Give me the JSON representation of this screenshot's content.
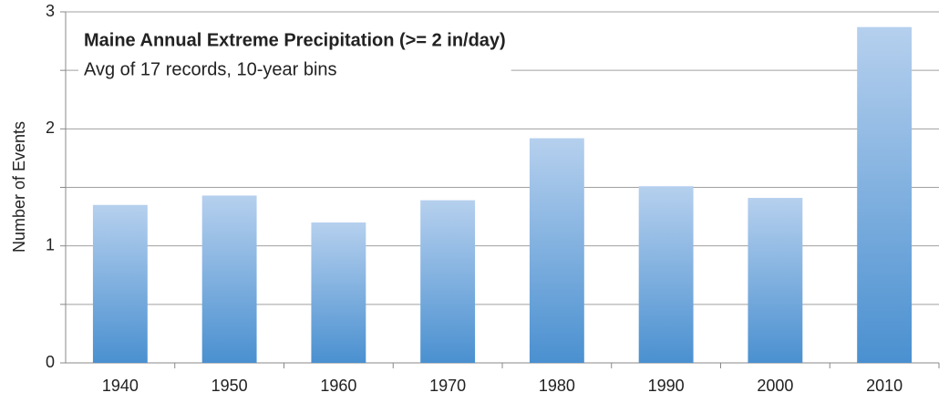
{
  "chart_data": {
    "type": "bar",
    "title": "Maine Annual Extreme Precipitation (>= 2 in/day)",
    "subtitle": "Avg of 17 records, 10-year bins",
    "y_label": "Number of Events",
    "categories": [
      "1940",
      "1950",
      "1960",
      "1970",
      "1980",
      "1990",
      "2000",
      "2010"
    ],
    "values": [
      1.35,
      1.43,
      1.2,
      1.39,
      1.92,
      1.51,
      1.41,
      2.87
    ],
    "color": "#4a90d0",
    "ylim": [
      0,
      3
    ],
    "yticks": [
      0,
      1,
      2,
      3
    ],
    "minor_yticks": [
      0.5,
      1.5,
      2.5
    ],
    "grid": true
  }
}
